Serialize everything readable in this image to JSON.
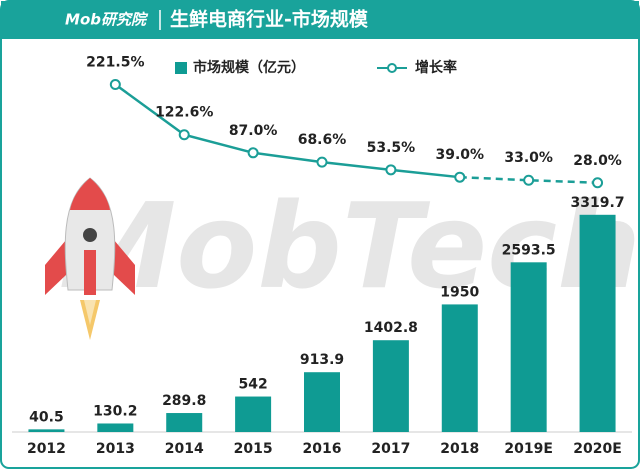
{
  "chart_data": {
    "type": "bar-line",
    "brand": "Mob研究院",
    "title": "生鲜电商行业-市场规模",
    "watermark": "MobTech",
    "categories": [
      "2012",
      "2013",
      "2014",
      "2015",
      "2016",
      "2017",
      "2018",
      "2019E",
      "2020E"
    ],
    "series": [
      {
        "name": "市场规模（亿元）",
        "type": "bar",
        "color": "#0f9b93",
        "values": [
          40.5,
          130.2,
          289.8,
          542,
          913.9,
          1402.8,
          1950,
          2593.5,
          3319.7
        ]
      },
      {
        "name": "增长率",
        "type": "line",
        "axis": "y2",
        "color": "#1b9e97",
        "dash_from_index": 6,
        "values": [
          null,
          221.5,
          122.6,
          87.0,
          68.6,
          53.5,
          39.0,
          33.0,
          28.0
        ],
        "value_labels": [
          null,
          "221.5%",
          "122.6%",
          "87.0%",
          "68.6%",
          "53.5%",
          "39.0%",
          "33.0%",
          "28.0%"
        ]
      }
    ],
    "ylim": [
      0,
      3500
    ],
    "y2lim": [
      0,
      250
    ]
  }
}
